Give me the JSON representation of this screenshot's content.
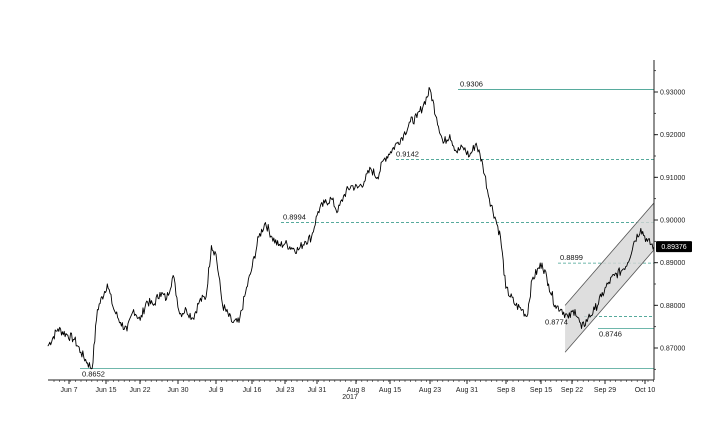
{
  "chart_data": {
    "type": "line",
    "title": "",
    "xlabel": "",
    "ylabel": "",
    "year_label": "2017",
    "x_ticks": [
      "Jun 7",
      "Jun 15",
      "Jun 22",
      "Jun 30",
      "Jul 9",
      "Jul 16",
      "Jul 23",
      "Jul 31",
      "Aug 8",
      "Aug 15",
      "Aug 23",
      "Aug 31",
      "Sep 8",
      "Sep 15",
      "Sep 22",
      "Sep 29",
      "Oct 10"
    ],
    "y_ticks": [
      "0.87000",
      "0.88000",
      "0.89000",
      "0.90000",
      "0.91000",
      "0.92000",
      "0.93000"
    ],
    "y_tick_values": [
      0.87,
      0.88,
      0.89,
      0.9,
      0.91,
      0.92,
      0.93
    ],
    "ylim": [
      0.8625,
      0.9375
    ],
    "last_value_label": "0.89376",
    "last_value": 0.89376,
    "grid": false,
    "series": [
      {
        "x": [
          0,
          1.5,
          3,
          4,
          5,
          6,
          6.7,
          7.5,
          9,
          10,
          11,
          12,
          13,
          14,
          15,
          16,
          17,
          18,
          19,
          20,
          21,
          22,
          23,
          24,
          24.8,
          25.5,
          26.5,
          28,
          29,
          30,
          31,
          32,
          33,
          34,
          35,
          36,
          37,
          38,
          39,
          40,
          41,
          42,
          43,
          44,
          45,
          46,
          47,
          48,
          49,
          50,
          51,
          52,
          53,
          54,
          55,
          56,
          57,
          58,
          59,
          60,
          61,
          62,
          63,
          64,
          65,
          66,
          67,
          68,
          68.7,
          69.5,
          71,
          72,
          72.7,
          73.5,
          75,
          76,
          77,
          78,
          79,
          80,
          81,
          82,
          83,
          84,
          85,
          86,
          87,
          88,
          89,
          90,
          91,
          92
        ],
        "values": [
          0.8705,
          0.8745,
          0.873,
          0.872,
          0.869,
          0.8665,
          0.8652,
          0.879,
          0.885,
          0.879,
          0.876,
          0.874,
          0.879,
          0.8765,
          0.881,
          0.88,
          0.883,
          0.8815,
          0.887,
          0.878,
          0.879,
          0.877,
          0.881,
          0.882,
          0.894,
          0.892,
          0.88,
          0.876,
          0.876,
          0.883,
          0.889,
          0.896,
          0.8994,
          0.896,
          0.894,
          0.8945,
          0.8935,
          0.893,
          0.895,
          0.896,
          0.902,
          0.904,
          0.905,
          0.902,
          0.906,
          0.908,
          0.9075,
          0.909,
          0.912,
          0.91,
          0.9142,
          0.916,
          0.918,
          0.92,
          0.923,
          0.924,
          0.927,
          0.9306,
          0.924,
          0.918,
          0.92,
          0.916,
          0.917,
          0.915,
          0.918,
          0.913,
          0.905,
          0.9,
          0.896,
          0.884,
          0.88,
          0.879,
          0.8774,
          0.886,
          0.8899,
          0.885,
          0.88,
          0.879,
          0.877,
          0.879,
          0.8746,
          0.877,
          0.879,
          0.882,
          0.885,
          0.887,
          0.888,
          0.89,
          0.895,
          0.898,
          0.895,
          0.89376
        ]
      }
    ],
    "levels": [
      {
        "label": "0.8652",
        "value": 0.8652,
        "style": "solid"
      },
      {
        "label": "0.8746",
        "value": 0.8746,
        "style": "solid"
      },
      {
        "label": "0.8774",
        "value": 0.8774,
        "style": "dashed"
      },
      {
        "label": "0.8899",
        "value": 0.8899,
        "style": "dashed"
      },
      {
        "label": "0.8994",
        "value": 0.8994,
        "style": "dashed"
      },
      {
        "label": "0.9142",
        "value": 0.9142,
        "style": "dashed"
      },
      {
        "label": "0.9306",
        "value": 0.9306,
        "style": "solid"
      }
    ],
    "channel": {
      "x_start": 78.5,
      "x_end": 92,
      "lower_start": 0.869,
      "lower_end": 0.893,
      "upper_start": 0.88,
      "upper_end": 0.904
    },
    "colors": {
      "price": "#000000",
      "level": "#3f9f8f",
      "channel_fill": "#d6d6d6",
      "channel_edge": "#555555",
      "last_box": "#000000"
    }
  }
}
